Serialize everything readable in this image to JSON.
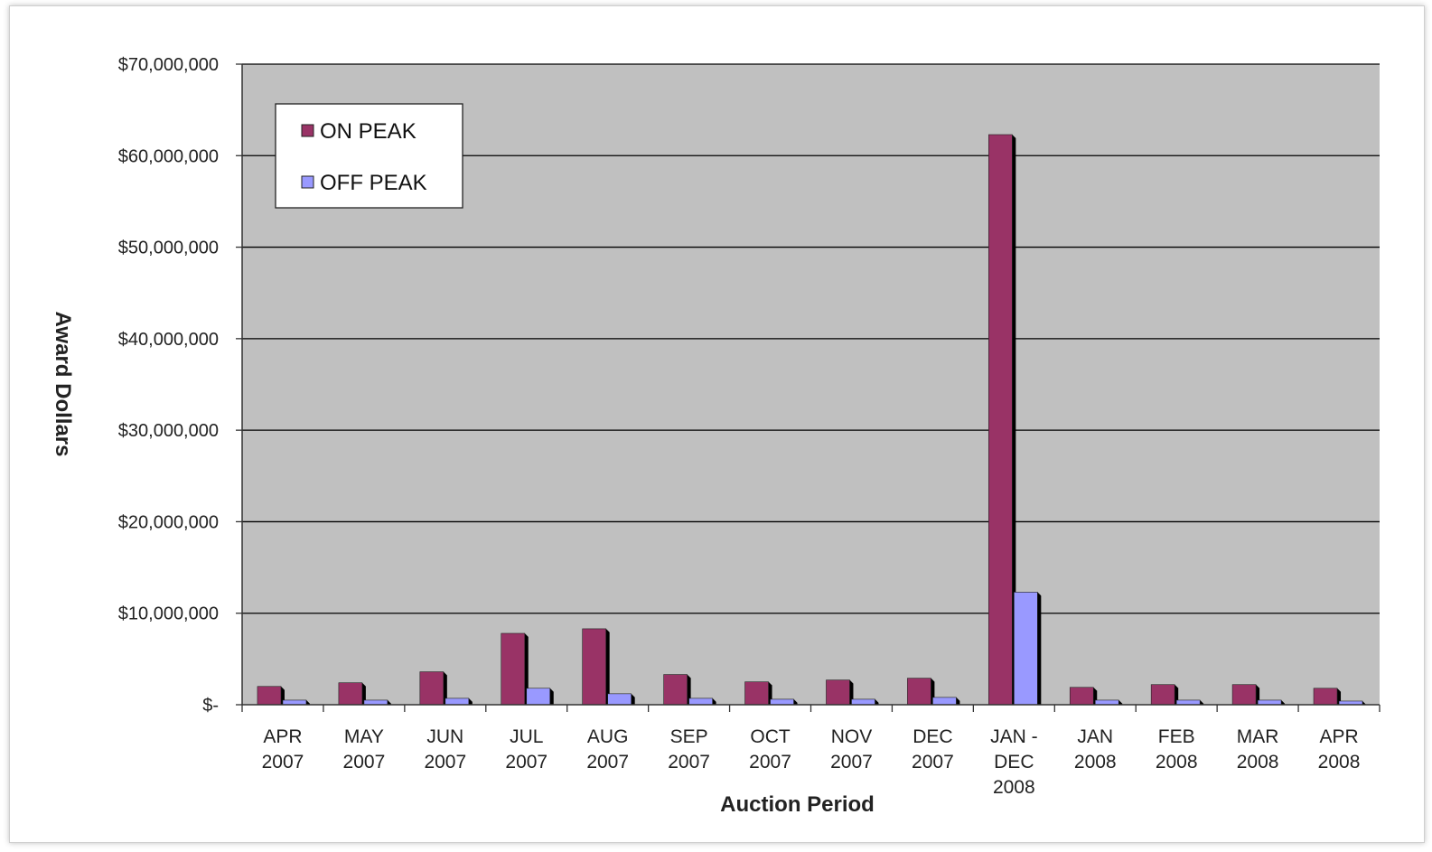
{
  "chart_data": {
    "type": "bar",
    "title": "",
    "xlabel": "Auction Period",
    "ylabel": "Award Dollars",
    "ylim": [
      0,
      70000000
    ],
    "yticks": [
      0,
      10000000,
      20000000,
      30000000,
      40000000,
      50000000,
      60000000,
      70000000
    ],
    "ytick_labels": [
      "$-",
      "$10,000,000",
      "$20,000,000",
      "$30,000,000",
      "$40,000,000",
      "$50,000,000",
      "$60,000,000",
      "$70,000,000"
    ],
    "grid": true,
    "legend_position": "top-left",
    "categories": [
      [
        "APR",
        "2007"
      ],
      [
        "MAY",
        "2007"
      ],
      [
        "JUN",
        "2007"
      ],
      [
        "JUL",
        "2007"
      ],
      [
        "AUG",
        "2007"
      ],
      [
        "SEP",
        "2007"
      ],
      [
        "OCT",
        "2007"
      ],
      [
        "NOV",
        "2007"
      ],
      [
        "DEC",
        "2007"
      ],
      [
        "JAN -",
        "DEC",
        "2008"
      ],
      [
        "JAN",
        "2008"
      ],
      [
        "FEB",
        "2008"
      ],
      [
        "MAR",
        "2008"
      ],
      [
        "APR",
        "2008"
      ]
    ],
    "series": [
      {
        "name": "ON PEAK",
        "color": "#993366",
        "values": [
          2000000,
          2400000,
          3600000,
          7800000,
          8300000,
          3300000,
          2500000,
          2700000,
          2900000,
          62300000,
          1900000,
          2200000,
          2200000,
          1800000
        ]
      },
      {
        "name": "OFF PEAK",
        "color": "#9999ff",
        "values": [
          500000,
          500000,
          700000,
          1800000,
          1200000,
          700000,
          600000,
          600000,
          800000,
          12300000,
          500000,
          500000,
          500000,
          400000
        ]
      }
    ],
    "colors": {
      "plot_background": "#c0c0c0",
      "gridline": "#000000"
    }
  }
}
